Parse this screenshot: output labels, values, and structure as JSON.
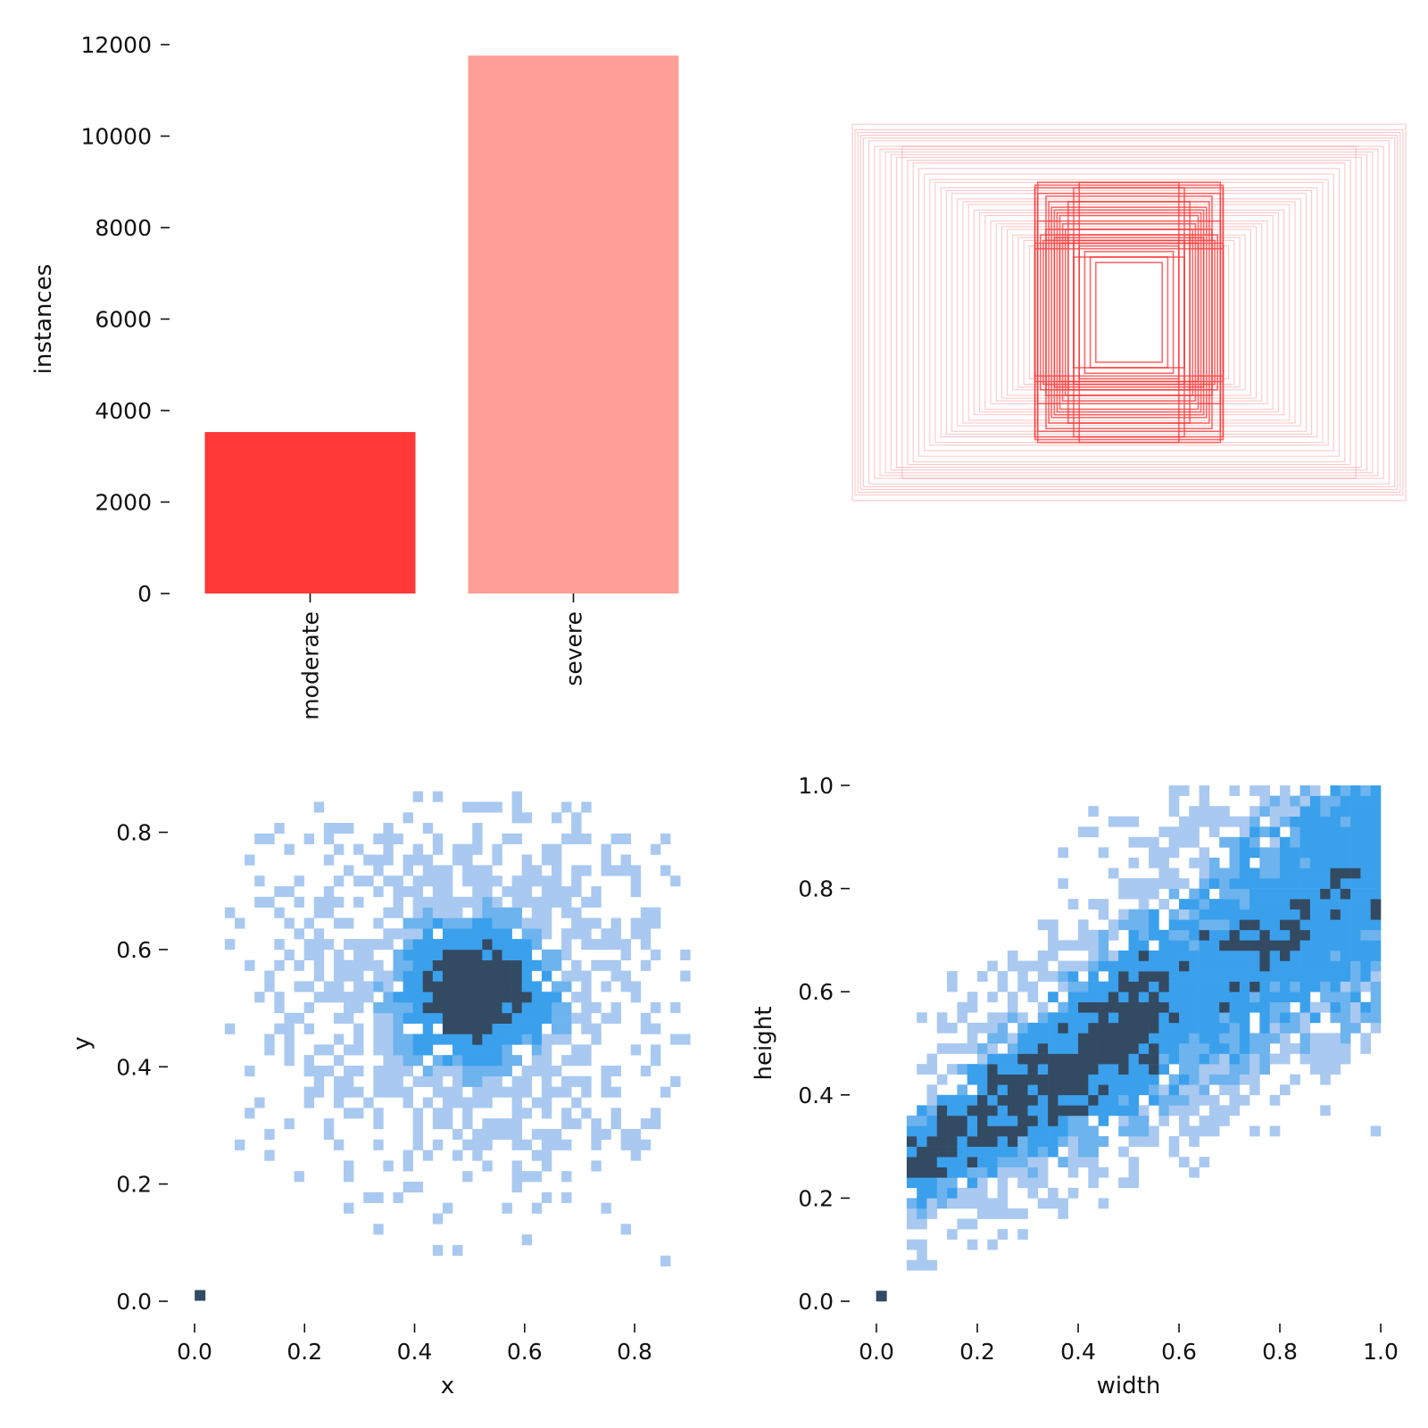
{
  "colors": {
    "moderate": "#ff3838",
    "severe": "#ff9d97",
    "box_stroke": "#ff3838",
    "heat_light": "#a9c9f1",
    "heat_mid": "#3aa0ec",
    "heat_dark": "#334a63"
  },
  "chart_data": [
    {
      "id": "instances-bar",
      "type": "bar",
      "categories": [
        "moderate",
        "severe"
      ],
      "values": [
        3530,
        11760
      ],
      "bar_colors": [
        "#ff3838",
        "#ff9d97"
      ],
      "ylabel": "instances",
      "xlabel": "",
      "ylim": [
        0,
        12000
      ],
      "yticks": [
        0,
        2000,
        4000,
        6000,
        8000,
        10000,
        12000
      ],
      "ytick_labels": [
        "0",
        "2000",
        "4000",
        "6000",
        "8000",
        "10000",
        "12000"
      ],
      "grid": false,
      "category_label_rotation": "vertical"
    },
    {
      "id": "box-overlay",
      "type": "box-overlay",
      "description_visible": "overlaid bounding boxes centered at 0.5, 0.5",
      "boxes_wh": [
        [
          1.0,
          0.68
        ],
        [
          0.99,
          0.66
        ],
        [
          0.98,
          0.65
        ],
        [
          0.97,
          0.64
        ],
        [
          0.96,
          0.63
        ],
        [
          0.94,
          0.62
        ],
        [
          0.92,
          0.6
        ],
        [
          0.9,
          0.59
        ],
        [
          0.88,
          0.58
        ],
        [
          0.86,
          0.57
        ],
        [
          0.84,
          0.56
        ],
        [
          0.82,
          0.6
        ],
        [
          0.8,
          0.55
        ],
        [
          0.78,
          0.54
        ],
        [
          0.76,
          0.52
        ],
        [
          0.74,
          0.5
        ],
        [
          0.72,
          0.48
        ],
        [
          0.7,
          0.47
        ],
        [
          0.68,
          0.45
        ],
        [
          0.66,
          0.44
        ],
        [
          0.64,
          0.43
        ],
        [
          0.62,
          0.41
        ],
        [
          0.6,
          0.4
        ],
        [
          0.58,
          0.39
        ],
        [
          0.56,
          0.37
        ],
        [
          0.54,
          0.36
        ],
        [
          0.52,
          0.35
        ],
        [
          0.5,
          0.33
        ],
        [
          0.48,
          0.32
        ],
        [
          0.46,
          0.31
        ],
        [
          0.44,
          0.3
        ],
        [
          0.42,
          0.28
        ],
        [
          0.4,
          0.27
        ],
        [
          0.38,
          0.26
        ],
        [
          0.36,
          0.24
        ],
        [
          0.34,
          0.23
        ],
        [
          0.33,
          0.47
        ],
        [
          0.34,
          0.45
        ],
        [
          0.33,
          0.43
        ],
        [
          0.34,
          0.46
        ],
        [
          0.3,
          0.42
        ],
        [
          0.29,
          0.4
        ],
        [
          0.28,
          0.38
        ],
        [
          0.27,
          0.37
        ],
        [
          0.26,
          0.36
        ],
        [
          0.25,
          0.35
        ],
        [
          0.24,
          0.32
        ],
        [
          0.23,
          0.3
        ],
        [
          0.22,
          0.28
        ],
        [
          0.2,
          0.26
        ],
        [
          0.18,
          0.24
        ],
        [
          0.16,
          0.22
        ],
        [
          0.14,
          0.2
        ],
        [
          0.12,
          0.18
        ],
        [
          0.34,
          0.25
        ],
        [
          0.31,
          0.26
        ],
        [
          0.32,
          0.28
        ],
        [
          0.18,
          0.47
        ],
        [
          0.2,
          0.45
        ],
        [
          0.22,
          0.4
        ],
        [
          0.33,
          0.33
        ],
        [
          0.3,
          0.3
        ],
        [
          0.27,
          0.27
        ],
        [
          0.25,
          0.25
        ],
        [
          0.2,
          0.2
        ]
      ]
    },
    {
      "id": "xy-hist",
      "type": "heatmap",
      "xlabel": "x",
      "ylabel": "y",
      "xlim": [
        0.0,
        0.92
      ],
      "ylim": [
        0.0,
        0.88
      ],
      "xticks": [
        0.0,
        0.2,
        0.4,
        0.6,
        0.8
      ],
      "xtick_labels": [
        "0.0",
        "0.2",
        "0.4",
        "0.6",
        "0.8"
      ],
      "yticks": [
        0.0,
        0.2,
        0.4,
        0.6,
        0.8
      ],
      "ytick_labels": [
        "0.0",
        "0.2",
        "0.4",
        "0.6",
        "0.8"
      ],
      "center": [
        0.5,
        0.52
      ],
      "spread": [
        0.16,
        0.14
      ],
      "bins": 50,
      "outlier_cell": [
        0.01,
        0.01
      ]
    },
    {
      "id": "wh-hist",
      "type": "heatmap",
      "xlabel": "width",
      "ylabel": "height",
      "xlim": [
        0.0,
        1.0
      ],
      "ylim": [
        0.0,
        1.0
      ],
      "xticks": [
        0.0,
        0.2,
        0.4,
        0.6,
        0.8,
        1.0
      ],
      "xtick_labels": [
        "0.0",
        "0.2",
        "0.4",
        "0.6",
        "0.8",
        "1.0"
      ],
      "yticks": [
        0.0,
        0.2,
        0.4,
        0.6,
        0.8,
        1.0
      ],
      "ytick_labels": [
        "0.0",
        "0.2",
        "0.4",
        "0.6",
        "0.8",
        "1.0"
      ],
      "trend": "height approximately equals width with density strongest near 0.1 to 0.5",
      "bins": 50,
      "outlier_cell": [
        0.01,
        0.01
      ]
    }
  ]
}
